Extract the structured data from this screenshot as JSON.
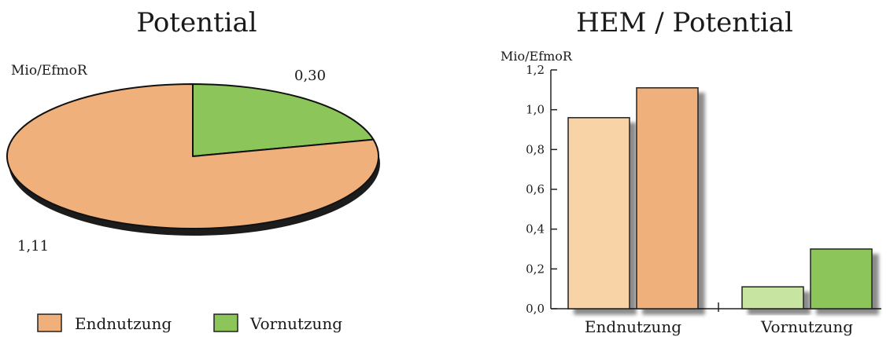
{
  "chart_data": [
    {
      "type": "pie",
      "title": "Potential",
      "unit_label": "Mio/EfmoR",
      "slices": [
        {
          "name": "Endnutzung",
          "value": 1.11,
          "label": "1,11",
          "color": "#f0b07c"
        },
        {
          "name": "Vornutzung",
          "value": 0.3,
          "label": "0,30",
          "color": "#8cc65a"
        }
      ],
      "legend": {
        "placement": "bottom",
        "items": [
          {
            "label": "Endnutzung",
            "color": "#f0b07c"
          },
          {
            "label": "Vornutzung",
            "color": "#8cc65a"
          }
        ]
      }
    },
    {
      "type": "bar",
      "title": "HEM / Potential",
      "ylabel": "Mio/EfmoR",
      "categories": [
        "Endnutzung",
        "Vornutzung"
      ],
      "ylim": [
        0,
        1.2
      ],
      "yticks": [
        "0,0",
        "0,2",
        "0,4",
        "0,6",
        "0,8",
        "1,0",
        "1,2"
      ],
      "series": [
        {
          "values": [
            0.96,
            0.11
          ],
          "colors": [
            "#f8d3a6",
            "#c7e5a0"
          ]
        },
        {
          "values": [
            1.11,
            0.3
          ],
          "colors": [
            "#f0b07c",
            "#8cc65a"
          ]
        }
      ]
    }
  ]
}
